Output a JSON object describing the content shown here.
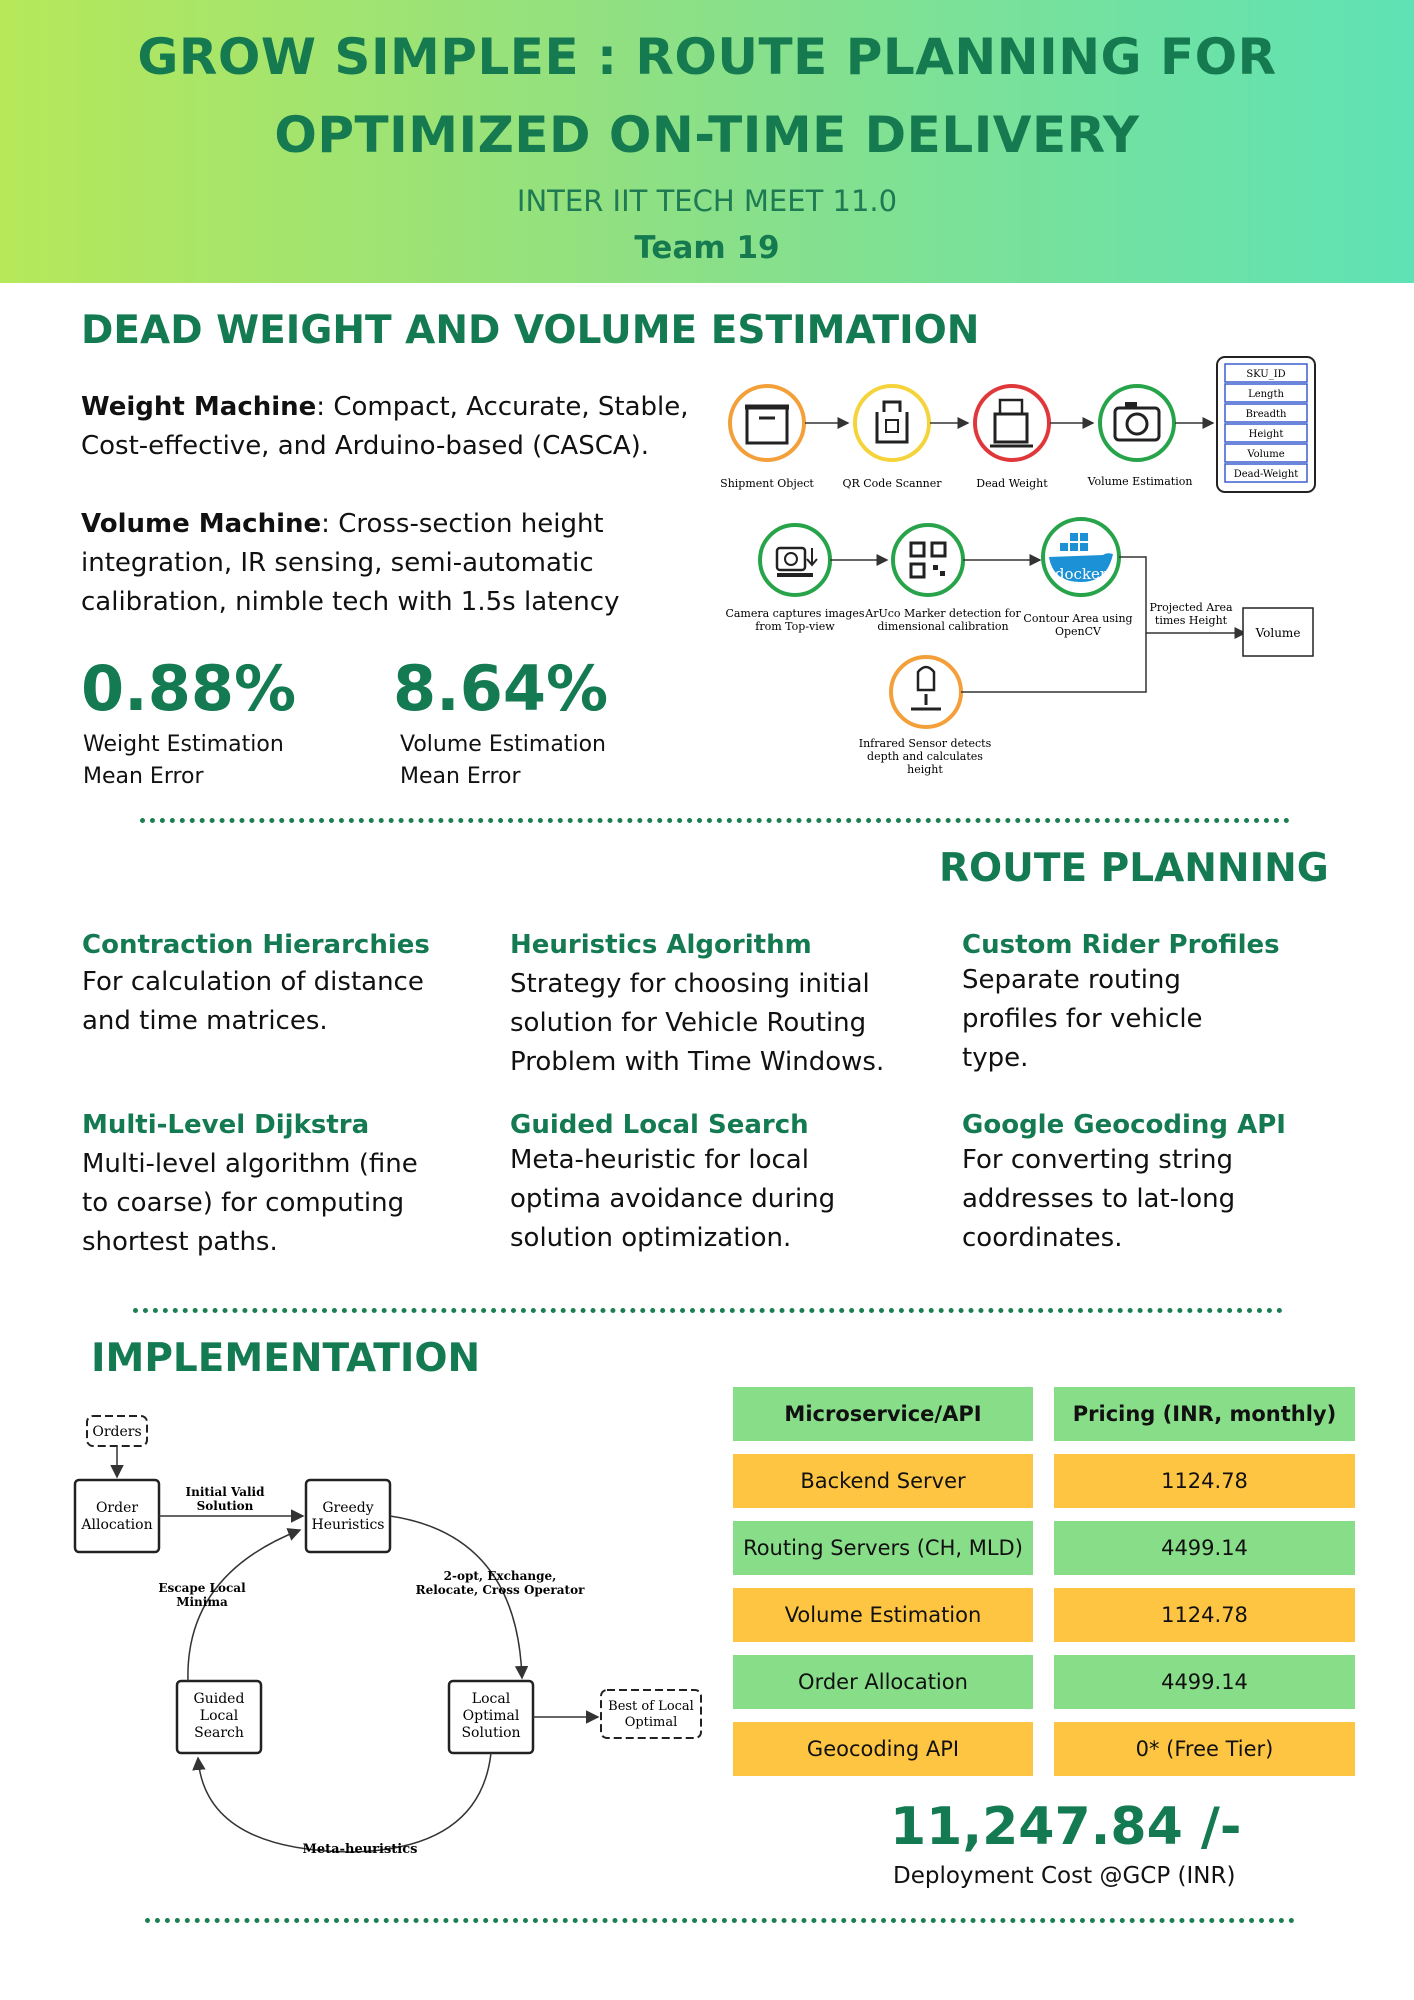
{
  "header": {
    "title_line1": "GROW SIMPLEE : ROUTE PLANNING FOR",
    "title_line2": "OPTIMIZED ON-TIME DELIVERY",
    "event": "INTER IIT TECH MEET 11.0",
    "team": "Team 19",
    "colors": {
      "gradient_start": "#b6e85a",
      "gradient_end": "#5fe2b5",
      "accent": "#147a52"
    }
  },
  "dead_weight": {
    "title": "DEAD WEIGHT AND VOLUME ESTIMATION",
    "weight_label": "Weight Machine",
    "weight_text_1": ": Compact, Accurate, Stable,",
    "weight_text_2": "Cost-effective,  and Arduino-based (CASCA).",
    "volume_label": "Volume Machine",
    "volume_text_1": ": Cross-section height",
    "volume_text_2": "integration, IR sensing, semi-automatic",
    "volume_text_3": "calibration, nimble tech with 1.5s latency",
    "stats": [
      {
        "value": "0.88%",
        "label_1": "Weight Estimation",
        "label_2": "Mean Error"
      },
      {
        "value": "8.64%",
        "label_1": "Volume Estimation",
        "label_2": "Mean Error"
      }
    ],
    "pipeline": {
      "shipment": "Shipment Object",
      "qr": "QR Code Scanner",
      "dead_weight": "Dead Weight",
      "volume_est": "Volume Estimation",
      "fields": [
        "SKU_ID",
        "Length",
        "Breadth",
        "Height",
        "Volume",
        "Dead-Weight"
      ],
      "camera_1": "Camera captures images",
      "camera_2": "from Top-view",
      "aruco_1": "ArUco Marker detection for",
      "aruco_2": "dimensional calibration",
      "docker": "docker",
      "contour_1": "Contour Area using",
      "contour_2": "OpenCV",
      "projected_1": "Projected Area",
      "projected_2": "times Height",
      "volume": "Volume",
      "ir_1": "Infrared Sensor detects",
      "ir_2": "depth and calculates",
      "ir_3": "height",
      "icons": [
        "box-icon",
        "qr-scanner-icon",
        "weighing-machine-icon",
        "camera-icon",
        "camera-download-icon",
        "qr-code-icon",
        "docker-whale-icon",
        "infrared-sensor-icon"
      ]
    }
  },
  "route_planning": {
    "title": "ROUTE PLANNING",
    "features": [
      {
        "title": "Contraction Hierarchies",
        "lines": [
          "For calculation of distance",
          "and time matrices."
        ]
      },
      {
        "title": "Heuristics Algorithm",
        "lines": [
          "Strategy for choosing initial",
          "solution for Vehicle Routing",
          "Problem with Time Windows."
        ]
      },
      {
        "title": "Custom Rider Profiles",
        "lines": [
          "Separate routing",
          "profiles for vehicle",
          "type."
        ]
      },
      {
        "title": "Multi-Level Dijkstra",
        "lines": [
          "Multi-level algorithm (fine",
          "to coarse) for computing",
          "shortest paths."
        ]
      },
      {
        "title": "Guided Local Search",
        "lines": [
          "Meta-heuristic for local",
          "optima avoidance during",
          "solution optimization."
        ]
      },
      {
        "title": "Google Geocoding API",
        "lines": [
          "For converting string",
          "addresses to lat-long",
          "coordinates."
        ]
      }
    ]
  },
  "implementation": {
    "title": "IMPLEMENTATION",
    "flow": {
      "orders": "Orders",
      "order_alloc_1": "Order",
      "order_alloc_2": "Allocation",
      "initial_1": "Initial Valid",
      "initial_2": "Solution",
      "greedy_1": "Greedy",
      "greedy_2": "Heuristics",
      "ops_1": "2-opt, Exchange,",
      "ops_2": "Relocate, Cross Operator",
      "escape_1": "Escape Local",
      "escape_2": "Minima",
      "gls_1": "Guided",
      "gls_2": "Local",
      "gls_3": "Search",
      "local_1": "Local",
      "local_2": "Optimal",
      "local_3": "Solution",
      "best_1": "Best of Local",
      "best_2": "Optimal",
      "meta": "Meta-heuristics"
    },
    "table": {
      "headers": [
        "Microservice/API",
        "Pricing (INR, monthly)"
      ],
      "rows": [
        [
          "Backend Server",
          "1124.78"
        ],
        [
          "Routing Servers (CH, MLD)",
          "4499.14"
        ],
        [
          "Volume Estimation",
          "1124.78"
        ],
        [
          "Order Allocation",
          "4499.14"
        ],
        [
          "Geocoding API",
          "0* (Free Tier)"
        ]
      ],
      "colors": {
        "green": "#88dd88",
        "yellow": "#fec542"
      }
    },
    "cost": "11,247.84 /-",
    "cost_label": "Deployment Cost @GCP (INR)"
  }
}
